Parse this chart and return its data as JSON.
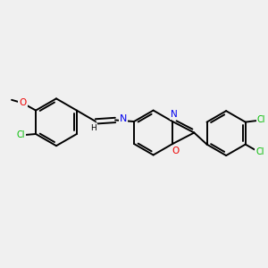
{
  "background_color": "#f0f0f0",
  "bond_color": "#000000",
  "atom_colors": {
    "Cl": "#00bb00",
    "O": "#ee0000",
    "N": "#0000ee",
    "C": "#000000",
    "H": "#000000"
  },
  "line_width": 1.4,
  "figsize": [
    3.0,
    3.0
  ],
  "dpi": 100,
  "xlim": [
    0,
    10
  ],
  "ylim": [
    0,
    10
  ]
}
